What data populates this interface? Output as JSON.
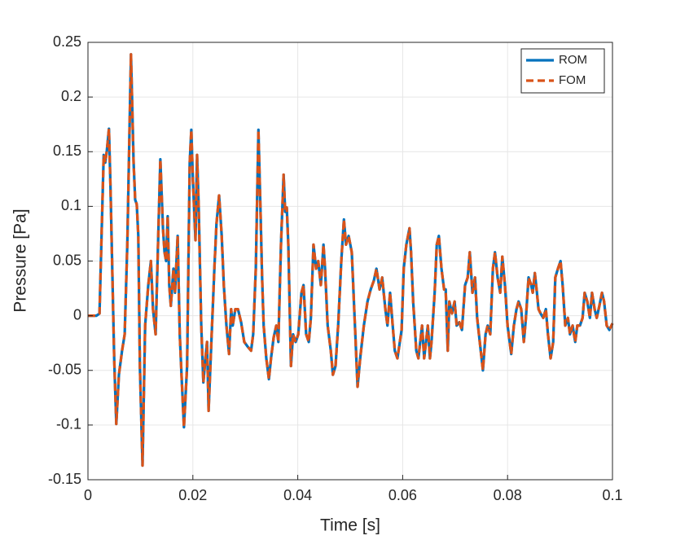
{
  "chart_data": {
    "type": "line",
    "xlabel": "Time [s]",
    "ylabel": "Pressure [Pa]",
    "xlim": [
      0,
      0.1
    ],
    "xticks": [
      0,
      0.02,
      0.04,
      0.06,
      0.08,
      0.1
    ],
    "ylim": [
      -0.15,
      0.25
    ],
    "yticks": [
      -0.15,
      -0.1,
      -0.05,
      0,
      0.05,
      0.1,
      0.15,
      0.2,
      0.25
    ],
    "grid": true,
    "legend": "northeast",
    "x": [
      0,
      0.0016,
      0.0022,
      0.003,
      0.0033,
      0.0036,
      0.004,
      0.0043,
      0.005,
      0.0054,
      0.0059,
      0.0065,
      0.007,
      0.0075,
      0.0082,
      0.0087,
      0.009,
      0.0093,
      0.0096,
      0.0099,
      0.0104,
      0.0109,
      0.0115,
      0.012,
      0.0124,
      0.0129,
      0.0134,
      0.0138,
      0.0143,
      0.0146,
      0.0149,
      0.0152,
      0.0155,
      0.0158,
      0.0163,
      0.0166,
      0.0171,
      0.0175,
      0.0179,
      0.0183,
      0.0189,
      0.0194,
      0.0197,
      0.02,
      0.0205,
      0.0208,
      0.0211,
      0.0216,
      0.022,
      0.0224,
      0.0227,
      0.023,
      0.0234,
      0.0241,
      0.0245,
      0.025,
      0.0255,
      0.0259,
      0.0264,
      0.0269,
      0.0273,
      0.0276,
      0.0281,
      0.0286,
      0.0292,
      0.0298,
      0.0304,
      0.0311,
      0.0315,
      0.032,
      0.0325,
      0.0329,
      0.0332,
      0.0335,
      0.034,
      0.0345,
      0.0349,
      0.0354,
      0.0359,
      0.0363,
      0.0368,
      0.0373,
      0.0376,
      0.0379,
      0.0382,
      0.0387,
      0.0391,
      0.0396,
      0.0401,
      0.0407,
      0.0411,
      0.0416,
      0.0421,
      0.0425,
      0.043,
      0.0435,
      0.0439,
      0.0444,
      0.0449,
      0.0452,
      0.0457,
      0.0463,
      0.0467,
      0.0472,
      0.0477,
      0.0483,
      0.0488,
      0.0492,
      0.0497,
      0.0503,
      0.0509,
      0.0514,
      0.0519,
      0.0526,
      0.0533,
      0.0539,
      0.0545,
      0.055,
      0.0556,
      0.0561,
      0.0567,
      0.0571,
      0.0576,
      0.0581,
      0.0585,
      0.059,
      0.0598,
      0.0602,
      0.0607,
      0.0613,
      0.0616,
      0.062,
      0.0626,
      0.063,
      0.0637,
      0.0641,
      0.0648,
      0.0652,
      0.0655,
      0.0661,
      0.0665,
      0.0669,
      0.0674,
      0.0679,
      0.0682,
      0.0686,
      0.0689,
      0.0694,
      0.0699,
      0.0703,
      0.0708,
      0.0713,
      0.0719,
      0.0724,
      0.0728,
      0.0733,
      0.0738,
      0.0742,
      0.0747,
      0.0753,
      0.0758,
      0.0762,
      0.0767,
      0.0772,
      0.0776,
      0.0781,
      0.0786,
      0.079,
      0.0795,
      0.08,
      0.0804,
      0.0807,
      0.0812,
      0.0817,
      0.0821,
      0.0826,
      0.0831,
      0.0835,
      0.084,
      0.0845,
      0.0848,
      0.0852,
      0.0856,
      0.0859,
      0.0863,
      0.0868,
      0.0873,
      0.0877,
      0.0882,
      0.0887,
      0.0891,
      0.0896,
      0.0901,
      0.0905,
      0.091,
      0.0915,
      0.0919,
      0.0924,
      0.0929,
      0.0933,
      0.0938,
      0.0943,
      0.0947,
      0.0952,
      0.0957,
      0.0961,
      0.0966,
      0.097,
      0.0975,
      0.098,
      0.0984,
      0.0989,
      0.0994,
      0.1
    ],
    "series": [
      {
        "name": "ROM",
        "color": "#0072bd",
        "dash": "solid",
        "values": [
          0,
          0,
          0.002,
          0.147,
          0.14,
          0.151,
          0.171,
          0.117,
          -0.039,
          -0.099,
          -0.054,
          -0.032,
          -0.017,
          0.065,
          0.239,
          0.14,
          0.106,
          0.102,
          0.073,
          -0.046,
          -0.137,
          -0.009,
          0.028,
          0.05,
          0.006,
          -0.017,
          0.073,
          0.143,
          0.08,
          0.058,
          0.05,
          0.091,
          0.028,
          0.009,
          0.043,
          0.021,
          0.073,
          -0.017,
          -0.061,
          -0.102,
          -0.046,
          0.14,
          0.17,
          0.125,
          0.069,
          0.147,
          0.102,
          -0.009,
          -0.061,
          -0.039,
          -0.024,
          -0.087,
          -0.039,
          0.043,
          0.084,
          0.11,
          0.073,
          0.028,
          -0.009,
          -0.035,
          0.006,
          -0.009,
          0.006,
          0.006,
          -0.006,
          -0.024,
          -0.028,
          -0.032,
          -0.017,
          0.043,
          0.17,
          0.095,
          0.035,
          -0.009,
          -0.039,
          -0.058,
          -0.039,
          -0.02,
          -0.009,
          -0.024,
          0.065,
          0.129,
          0.095,
          0.099,
          0.065,
          -0.046,
          -0.017,
          -0.024,
          -0.017,
          0.021,
          0.028,
          -0.017,
          -0.024,
          -0.002,
          0.065,
          0.043,
          0.05,
          0.028,
          0.065,
          0.043,
          -0.009,
          -0.032,
          -0.054,
          -0.046,
          -0.009,
          0.05,
          0.088,
          0.065,
          0.073,
          0.058,
          -0.009,
          -0.065,
          -0.039,
          -0.009,
          0.013,
          0.024,
          0.032,
          0.043,
          0.024,
          0.035,
          0.006,
          -0.009,
          0.021,
          -0.009,
          -0.032,
          -0.039,
          -0.013,
          0.043,
          0.065,
          0.08,
          0.058,
          0.013,
          -0.032,
          -0.039,
          -0.009,
          -0.039,
          -0.009,
          -0.039,
          -0.024,
          0.021,
          0.065,
          0.073,
          0.043,
          0.024,
          0.024,
          -0.032,
          0.013,
          0.002,
          0.013,
          -0.009,
          -0.006,
          -0.013,
          0.028,
          0.035,
          0.058,
          0.021,
          0.035,
          -0.002,
          -0.024,
          -0.05,
          -0.017,
          -0.009,
          -0.017,
          0.043,
          0.058,
          0.035,
          0.021,
          0.054,
          0.028,
          -0.009,
          -0.024,
          -0.035,
          -0.009,
          0.006,
          0.013,
          0.006,
          -0.024,
          -0.002,
          0.035,
          0.028,
          0.021,
          0.039,
          0.021,
          0.006,
          0.002,
          -0.002,
          0.006,
          -0.017,
          -0.039,
          -0.024,
          0.035,
          0.043,
          0.05,
          0.028,
          -0.009,
          -0.002,
          -0.017,
          -0.009,
          -0.024,
          -0.009,
          -0.009,
          -0.002,
          0.021,
          0.013,
          -0.002,
          0.021,
          0.006,
          -0.002,
          0.009,
          0.021,
          0.013,
          -0.009,
          -0.013,
          -0.007
        ]
      },
      {
        "name": "FOM",
        "color": "#d95319",
        "dash": "dashed",
        "values": [
          0,
          0,
          0.002,
          0.147,
          0.14,
          0.151,
          0.171,
          0.117,
          -0.039,
          -0.099,
          -0.054,
          -0.032,
          -0.017,
          0.065,
          0.239,
          0.14,
          0.106,
          0.102,
          0.073,
          -0.046,
          -0.137,
          -0.009,
          0.028,
          0.05,
          0.006,
          -0.017,
          0.073,
          0.143,
          0.08,
          0.058,
          0.05,
          0.091,
          0.028,
          0.009,
          0.043,
          0.021,
          0.073,
          -0.017,
          -0.061,
          -0.102,
          -0.046,
          0.14,
          0.17,
          0.125,
          0.069,
          0.147,
          0.102,
          -0.009,
          -0.061,
          -0.039,
          -0.024,
          -0.087,
          -0.039,
          0.043,
          0.084,
          0.11,
          0.073,
          0.028,
          -0.009,
          -0.035,
          0.006,
          -0.009,
          0.006,
          0.006,
          -0.006,
          -0.024,
          -0.028,
          -0.032,
          -0.017,
          0.043,
          0.17,
          0.095,
          0.035,
          -0.009,
          -0.039,
          -0.058,
          -0.039,
          -0.02,
          -0.009,
          -0.024,
          0.065,
          0.129,
          0.095,
          0.099,
          0.065,
          -0.046,
          -0.017,
          -0.024,
          -0.017,
          0.021,
          0.028,
          -0.017,
          -0.024,
          -0.002,
          0.065,
          0.043,
          0.05,
          0.028,
          0.065,
          0.043,
          -0.009,
          -0.032,
          -0.054,
          -0.046,
          -0.009,
          0.05,
          0.088,
          0.065,
          0.073,
          0.058,
          -0.009,
          -0.065,
          -0.039,
          -0.009,
          0.013,
          0.024,
          0.032,
          0.043,
          0.024,
          0.035,
          0.006,
          -0.009,
          0.021,
          -0.009,
          -0.032,
          -0.039,
          -0.013,
          0.043,
          0.065,
          0.08,
          0.058,
          0.013,
          -0.032,
          -0.039,
          -0.009,
          -0.039,
          -0.009,
          -0.039,
          -0.024,
          0.021,
          0.065,
          0.073,
          0.043,
          0.024,
          0.024,
          -0.032,
          0.013,
          0.002,
          0.013,
          -0.009,
          -0.006,
          -0.013,
          0.028,
          0.035,
          0.058,
          0.021,
          0.035,
          -0.002,
          -0.024,
          -0.05,
          -0.017,
          -0.009,
          -0.017,
          0.043,
          0.058,
          0.035,
          0.021,
          0.054,
          0.028,
          -0.009,
          -0.024,
          -0.035,
          -0.009,
          0.006,
          0.013,
          0.006,
          -0.024,
          -0.002,
          0.035,
          0.028,
          0.021,
          0.039,
          0.021,
          0.006,
          0.002,
          -0.002,
          0.006,
          -0.017,
          -0.039,
          -0.024,
          0.035,
          0.043,
          0.05,
          0.028,
          -0.009,
          -0.002,
          -0.017,
          -0.009,
          -0.024,
          -0.009,
          -0.009,
          -0.002,
          0.021,
          0.013,
          -0.002,
          0.021,
          0.006,
          -0.002,
          0.009,
          0.021,
          0.013,
          -0.009,
          -0.013,
          -0.007
        ]
      }
    ]
  }
}
